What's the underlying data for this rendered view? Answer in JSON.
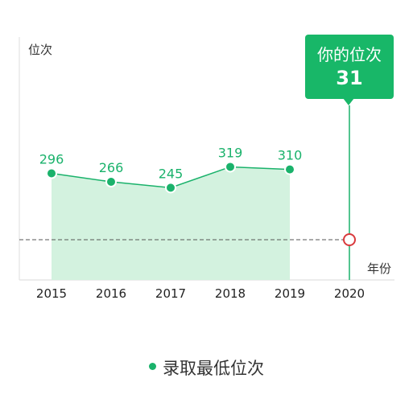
{
  "chart_data": {
    "type": "area",
    "ylabel": "位次",
    "xlabel": "年份",
    "categories": [
      "2015",
      "2016",
      "2017",
      "2018",
      "2019",
      "2020"
    ],
    "series": [
      {
        "name": "录取最低位次",
        "values": [
          296,
          266,
          245,
          319,
          310,
          null
        ]
      }
    ],
    "your_rank": {
      "label": "你的位次",
      "value": 31,
      "year": "2020"
    },
    "colors": {
      "line": "#1ab26b",
      "area": "#d3f2df",
      "callout": "#18b768",
      "marker_ring": "#d9393c",
      "reference_line": "#555555"
    },
    "grid": false,
    "legend_position": "bottom"
  }
}
